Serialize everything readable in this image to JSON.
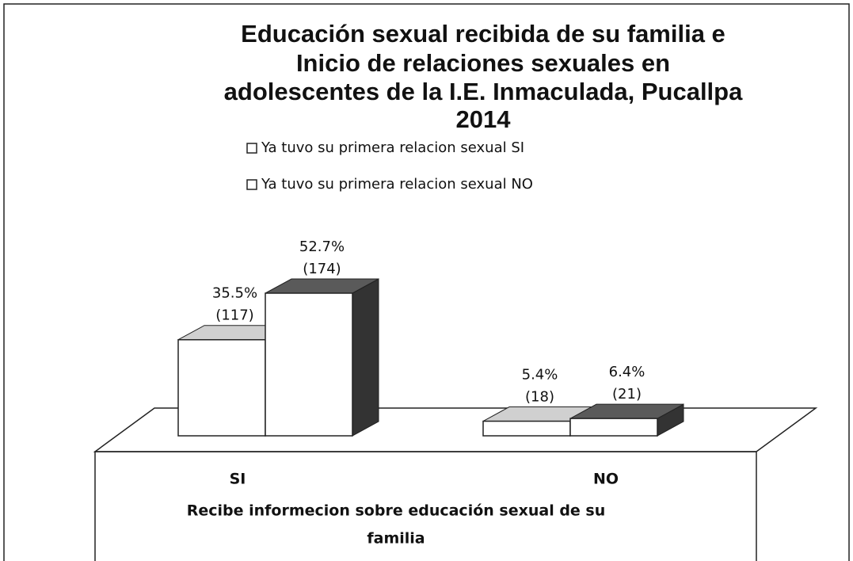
{
  "chart_data": {
    "type": "bar3d",
    "title": [
      "Educación sexual recibida de su  familia e",
      "Inicio de relaciones sexuales en",
      "adolescentes de la I.E. Inmaculada, Pucallpa",
      "2014"
    ],
    "x_label": [
      "Recibe informecion sobre educación sexual de su",
      "familia"
    ],
    "categories": [
      "SI",
      "NO"
    ],
    "series": [
      {
        "name": "Ya tuvo su primera relacion sexual SI",
        "color": "#d0d0d0",
        "values": [
          35.5,
          5.4
        ],
        "value_labels": [
          "35.5%",
          "5.4%"
        ],
        "counts": [
          117,
          18
        ],
        "count_labels": [
          "(117)",
          "(18)"
        ]
      },
      {
        "name": "Ya tuvo su primera relacion sexual NO",
        "color": "#5a5a5a",
        "values": [
          52.7,
          6.4
        ],
        "value_labels": [
          "52.7%",
          "6.4%"
        ],
        "counts": [
          174,
          21
        ],
        "count_labels": [
          "(174)",
          "(21)"
        ]
      }
    ]
  }
}
